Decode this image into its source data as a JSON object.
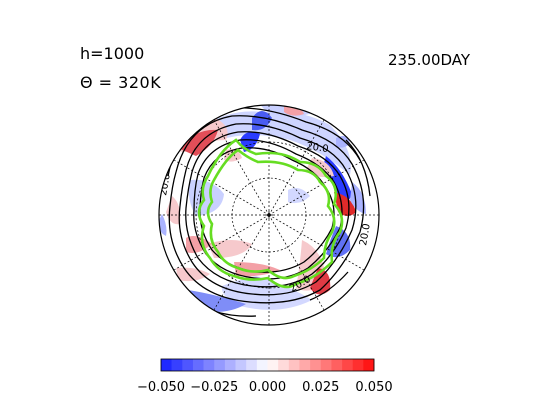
{
  "header": {
    "h_label": "h=1000",
    "theta_label": "Θ = 320K",
    "time_label": "235.00DAY"
  },
  "chart_data": {
    "type": "heatmap",
    "projection": "polar-stereographic",
    "title": "",
    "colorbar": {
      "ticks": [
        "−0.050",
        "−0.025",
        "0.000",
        "0.025",
        "0.050"
      ],
      "tick_values": [
        -0.05,
        -0.025,
        0.0,
        0.025,
        0.05
      ],
      "range": [
        -0.05,
        0.05
      ],
      "n_bins": 20
    },
    "contour_labels": [
      "20.0",
      "20.0",
      "20.0",
      "20.0"
    ],
    "colors": {
      "negative": "#2b3cff",
      "positive": "#ee1111",
      "contours": "#000000",
      "highlight_contour": "#66dd22"
    }
  }
}
